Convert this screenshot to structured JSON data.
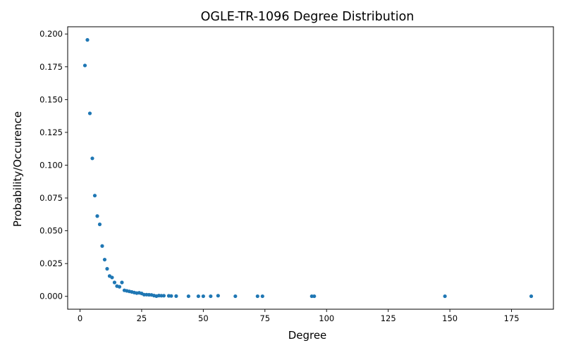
{
  "chart_data": {
    "type": "scatter",
    "title": "OGLE-TR-1096 Degree Distribution",
    "xlabel": "Degree",
    "ylabel": "Probability/Occurence",
    "xlim": [
      -5,
      192
    ],
    "ylim": [
      -0.0098,
      0.2055
    ],
    "x_ticks": [
      0,
      25,
      50,
      75,
      100,
      125,
      150,
      175
    ],
    "x_tick_labels": [
      "0",
      "25",
      "50",
      "75",
      "100",
      "125",
      "150",
      "175"
    ],
    "y_ticks": [
      0.0,
      0.025,
      0.05,
      0.075,
      0.1,
      0.125,
      0.15,
      0.175,
      0.2
    ],
    "y_tick_labels": [
      "0.000",
      "0.025",
      "0.050",
      "0.075",
      "0.100",
      "0.125",
      "0.150",
      "0.175",
      "0.200"
    ],
    "grid": false,
    "legend": "none",
    "marker_color": "#1f77b4",
    "series": [
      {
        "x": [
          2,
          3,
          4,
          5,
          6,
          7,
          8,
          9,
          10,
          11,
          12,
          13,
          14,
          15,
          16,
          17,
          18,
          19,
          20,
          21,
          22,
          23,
          24,
          25,
          26,
          27,
          28,
          29,
          30,
          31,
          32,
          33,
          34,
          36,
          37,
          39,
          44,
          48,
          50,
          53,
          56,
          63,
          72,
          74,
          94,
          95,
          148,
          183
        ],
        "y": [
          0.176,
          0.1955,
          0.1395,
          0.1052,
          0.0768,
          0.0612,
          0.0549,
          0.0384,
          0.028,
          0.021,
          0.0155,
          0.0144,
          0.0106,
          0.0078,
          0.0073,
          0.0106,
          0.0046,
          0.0042,
          0.0038,
          0.0034,
          0.0029,
          0.0025,
          0.0027,
          0.0022,
          0.0013,
          0.0013,
          0.0012,
          0.0011,
          0.0006,
          0.0002,
          0.0006,
          0.0005,
          0.0005,
          0.0004,
          0.0003,
          0.0002,
          0.0001,
          0.0001,
          0.0001,
          0.0001,
          0.0005,
          0.0001,
          0.0001,
          0.0001,
          0.0001,
          0.0001,
          0.0001,
          0.0001
        ]
      }
    ]
  }
}
